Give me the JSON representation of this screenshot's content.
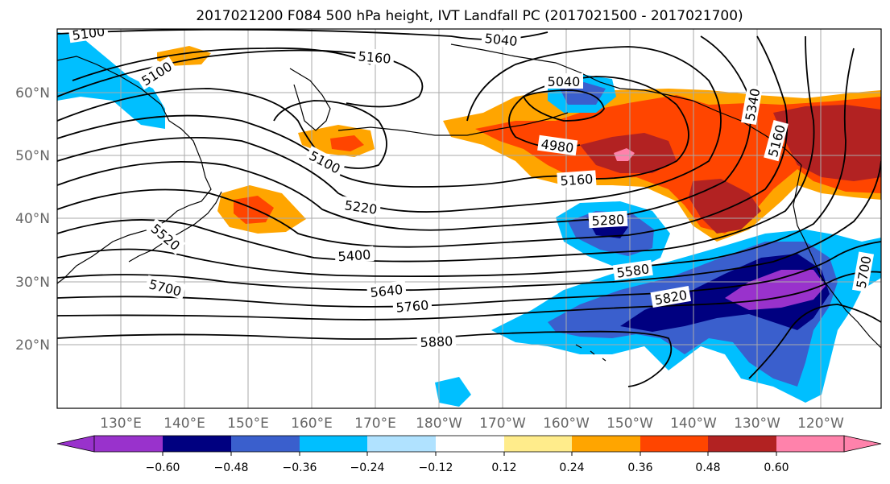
{
  "title": "2017021200 F084 500 hPa height, IVT Landfall PC (2017021500 - 2017021700)",
  "map": {
    "lat_labels": [
      "20°N",
      "30°N",
      "40°N",
      "50°N",
      "60°N"
    ],
    "lon_labels": [
      "130°E",
      "140°E",
      "150°E",
      "160°E",
      "170°E",
      "180°W",
      "170°W",
      "160°W",
      "150°W",
      "140°W",
      "130°W",
      "120°W"
    ],
    "contour_labels": [
      "5100",
      "5100",
      "5040",
      "5160",
      "5040",
      "5100",
      "4980",
      "5160",
      "5220",
      "5280",
      "5400",
      "5340",
      "5160",
      "5700",
      "5640",
      "5760",
      "5580",
      "5820",
      "5880",
      "5700",
      "5520"
    ]
  },
  "colorbar": {
    "tick_labels": [
      "−0.60",
      "−0.48",
      "−0.36",
      "−0.24",
      "−0.12",
      "0.12",
      "0.24",
      "0.36",
      "0.48",
      "0.60"
    ],
    "colors": [
      "#9932cc",
      "#000080",
      "#3a5fcd",
      "#00bfff",
      "#b0e2ff",
      "#ffffff",
      "#ffec8b",
      "#ffa500",
      "#ff4500",
      "#b22222",
      "#ff82ab",
      "#ff82ab"
    ]
  },
  "colors": {
    "orange": "#ffa500",
    "red_orange": "#ff4500",
    "dark_red": "#b22222",
    "pink": "#ff82ab",
    "purple": "#9932cc",
    "navy": "#000080",
    "royal_blue": "#3a5fcd",
    "sky_blue": "#00bfff",
    "light_blue": "#b0e2ff"
  }
}
